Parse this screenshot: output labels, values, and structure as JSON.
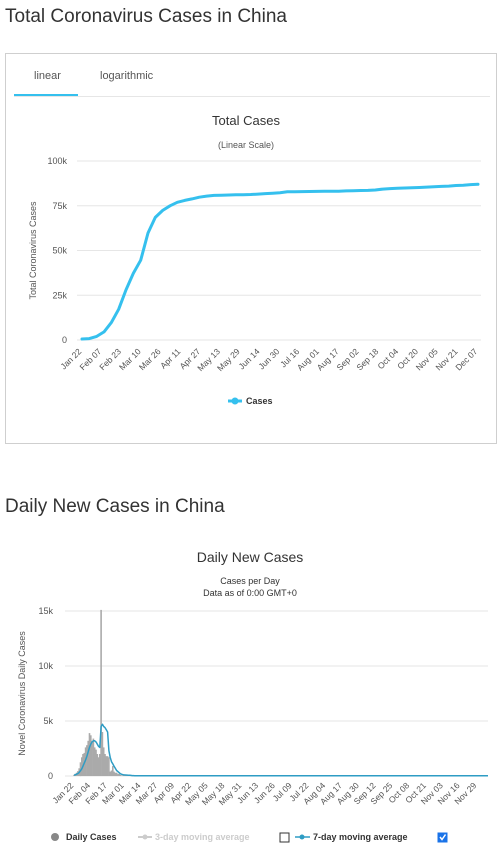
{
  "page": {
    "total_heading": "Total Coronavirus Cases in China",
    "daily_heading": "Daily New Cases in China"
  },
  "tabs": [
    {
      "label": "linear"
    },
    {
      "label": "logarithmic"
    }
  ],
  "colors": {
    "line": "#35c0ee",
    "grid": "#e6e6e6",
    "bars": "#aaaaaa",
    "avg7": "#2e9cc4"
  },
  "chart_data": [
    {
      "type": "line",
      "title": "Total Cases",
      "subtitle": "(Linear Scale)",
      "ylabel": "Total Coronavirus Cases",
      "ylim": [
        0,
        100000
      ],
      "y_ticks": [
        "0",
        "25k",
        "50k",
        "75k",
        "100k"
      ],
      "x_ticks": [
        "Jan 22",
        "Feb 07",
        "Feb 23",
        "Mar 10",
        "Mar 26",
        "Apr 11",
        "Apr 27",
        "May 13",
        "May 29",
        "Jun 14",
        "Jun 30",
        "Jul 16",
        "Aug 01",
        "Aug 17",
        "Sep 02",
        "Sep 18",
        "Oct 04",
        "Oct 20",
        "Nov 05",
        "Nov 21",
        "Dec 07"
      ],
      "legend": "bottom-center",
      "series": [
        {
          "name": "Cases",
          "values": [
            547,
            800,
            2000,
            4500,
            9700,
            17200,
            28000,
            37200,
            44600,
            59800,
            68500,
            72400,
            75000,
            76900,
            78000,
            78800,
            79800,
            80400,
            80800,
            80900,
            81000,
            81100,
            81200,
            81300,
            81500,
            81800,
            82000,
            82300,
            82800,
            82850,
            82900,
            82950,
            83000,
            83050,
            83100,
            83150,
            83300,
            83400,
            83500,
            83600,
            83800,
            84300,
            84600,
            84800,
            84900,
            85000,
            85200,
            85400,
            85600,
            85800,
            86000,
            86300,
            86500,
            86800,
            87000
          ]
        }
      ]
    },
    {
      "type": "bar",
      "title": "Daily New Cases",
      "subtitle_lines": [
        "Cases per Day",
        "Data as of 0:00 GMT+0"
      ],
      "ylabel": "Novel Coronavirus Daily Cases",
      "ylim": [
        0,
        15000
      ],
      "y_ticks": [
        "0",
        "5k",
        "10k",
        "15k"
      ],
      "x_ticks": [
        "Jan 22",
        "Feb 04",
        "Feb 17",
        "Mar 01",
        "Mar 14",
        "Mar 27",
        "Apr 09",
        "Apr 22",
        "May 05",
        "May 18",
        "May 31",
        "Jun 13",
        "Jun 26",
        "Jul 09",
        "Jul 22",
        "Aug 04",
        "Aug 17",
        "Aug 30",
        "Sep 12",
        "Sep 25",
        "Oct 08",
        "Oct 21",
        "Nov 03",
        "Nov 16",
        "Nov 29"
      ],
      "legend": "bottom-center",
      "legend_items": [
        {
          "name": "Daily Cases",
          "marker": "dot",
          "checkbox": false
        },
        {
          "name": "3-day moving average",
          "marker": "line-dimmed",
          "checkbox": false
        },
        {
          "name": "7-day moving average",
          "marker": "line",
          "checkbox": true
        }
      ],
      "series": [
        {
          "name": "Daily Cases",
          "start": "Jan 22",
          "values": [
            100,
            200,
            300,
            450,
            700,
            1250,
            1700,
            2000,
            2100,
            2600,
            2800,
            3200,
            3900,
            3700,
            3200,
            3400,
            2600,
            2400,
            2000,
            1700,
            2000,
            15100,
            4000,
            2600,
            2000,
            1800,
            1800,
            1700,
            400,
            500,
            900,
            400,
            300,
            300,
            200,
            200,
            100,
            50,
            50,
            50,
            50,
            40,
            40,
            30,
            30,
            30,
            20,
            20,
            20,
            20
          ]
        },
        {
          "name": "7-day moving average",
          "start": "Jan 22",
          "values": [
            80,
            110,
            160,
            230,
            330,
            480,
            650,
            900,
            1180,
            1460,
            1800,
            2200,
            2600,
            2900,
            3100,
            3200,
            3200,
            3100,
            2900,
            2700,
            2600,
            4500,
            4700,
            4500,
            4400,
            4200,
            4000,
            2300,
            1700,
            1300,
            1100,
            900,
            700,
            500,
            400,
            300,
            200,
            150,
            120,
            100,
            90,
            80,
            70,
            60,
            50,
            40,
            40,
            30,
            30,
            30
          ]
        }
      ]
    }
  ]
}
